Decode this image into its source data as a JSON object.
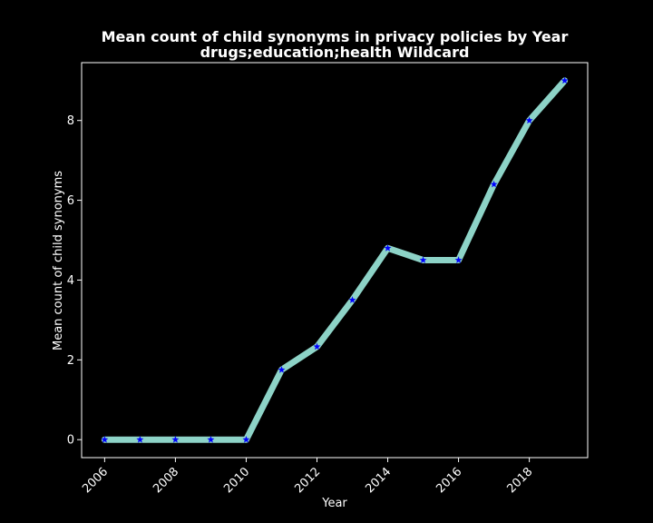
{
  "chart_data": {
    "type": "line",
    "title_lines": [
      "Mean count of child synonyms in privacy policies by Year",
      "drugs;education;health Wildcard"
    ],
    "xlabel": "Year",
    "ylabel": "Mean count of child synonyms",
    "x": [
      2006,
      2007,
      2008,
      2009,
      2010,
      2011,
      2012,
      2013,
      2014,
      2015,
      2016,
      2017,
      2018,
      2019
    ],
    "series": [
      {
        "values": [
          0,
          0,
          0,
          0,
          0,
          1.75,
          2.33,
          3.5,
          4.8,
          4.5,
          4.5,
          6.4,
          8.0,
          9.0
        ]
      }
    ],
    "xticks": [
      2006,
      2008,
      2010,
      2012,
      2014,
      2016,
      2018
    ],
    "yticks": [
      0,
      2,
      4,
      6,
      8
    ],
    "xlim": [
      2005.35,
      2019.65
    ],
    "ylim": [
      -0.45,
      9.45
    ],
    "grid": false,
    "colors": {
      "background": "#000000",
      "line": "#8dd3c7",
      "marker": "#0000ff",
      "axes": "#ffffff",
      "text": "#ffffff"
    },
    "marker": "star"
  }
}
